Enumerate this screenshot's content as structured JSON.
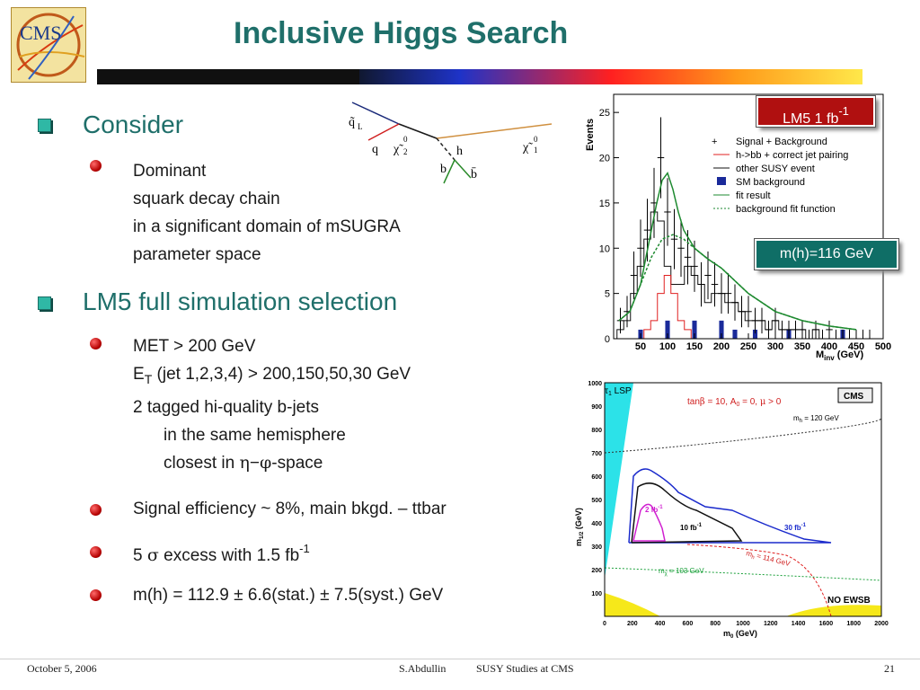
{
  "title": "Inclusive Higgs Search",
  "logo_text": "CMS",
  "section1": {
    "heading": "Consider",
    "items": [
      {
        "lines": [
          "Dominant",
          "squark decay chain",
          "in a significant domain of mSUGRA",
          "parameter space"
        ]
      }
    ]
  },
  "section2": {
    "heading": "LM5 full simulation selection",
    "item1": {
      "line1": "MET > 200 GeV",
      "et_letter": "E",
      "et_sub": "T",
      "line2_rest": " (jet 1,2,3,4) > 200,150,50,30 GeV",
      "line3": "2 tagged hi-quality b-jets",
      "line4": "in the same hemisphere",
      "line5_pre": "closest in ",
      "eta": "η",
      "dash": "−",
      "phi": "φ",
      "line5_post": "-space"
    },
    "item2": "Signal efficiency ~ 8%, main bkgd. – ttbar",
    "item3": {
      "pre": "5 ",
      "sigma": "σ",
      "post": " excess with 1.5 fb",
      "sup": "-1"
    },
    "item4": {
      "pre": "m(h) = 112.9 ",
      "pm1": "±",
      "mid": " 6.6(stat.) ",
      "pm2": "±",
      "post": " 7.5(syst.)  GeV"
    }
  },
  "diagram": {
    "labels": [
      "q̃",
      "L",
      "q",
      "χ̃",
      "0",
      "2",
      "h",
      "b",
      "b̄",
      "χ̃",
      "0",
      "1"
    ]
  },
  "plot1": {
    "box_label": "LM5  1 fb",
    "box_sup": "-1",
    "mass_label": "m(h)=116 GeV",
    "ylabel": "Events",
    "xlabel": "M",
    "xlabel_sub": "inv",
    "xlabel_unit": " (GeV)",
    "legend": [
      "Signal + Background",
      "h->bb + correct jet pairing",
      "other SUSY event",
      "SM background",
      "fit result",
      "background fit function"
    ],
    "colors": {
      "signal": "#000000",
      "correct": "#e02020",
      "other": "#111111",
      "sm": "#1a2a9a",
      "fit": "#1e8a30",
      "bkg": "#1e8a30"
    }
  },
  "chart_data": {
    "type": "bar",
    "title": "",
    "xlabel": "Minv (GeV)",
    "ylabel": "Events",
    "xlim": [
      0,
      500
    ],
    "ylim": [
      0,
      27
    ],
    "xticks": [
      "50",
      "100",
      "150",
      "200",
      "250",
      "300",
      "350",
      "400",
      "450",
      "500"
    ],
    "yticks": [
      "0",
      "5",
      "10",
      "15",
      "20",
      "25"
    ],
    "bin_width": 12.5,
    "bin_centers": [
      12.5,
      25,
      37.5,
      50,
      62.5,
      75,
      87.5,
      100,
      112.5,
      125,
      137.5,
      150,
      162.5,
      175,
      187.5,
      200,
      212.5,
      225,
      237.5,
      250,
      262.5,
      275,
      287.5,
      300,
      312.5,
      325,
      337.5,
      350,
      362.5,
      375,
      387.5,
      400,
      412.5,
      425,
      437.5,
      450,
      462.5,
      475
    ],
    "series": [
      {
        "name": "Signal + Background",
        "values": [
          2,
          3,
          7,
          10,
          12,
          15,
          20,
          14,
          11,
          10,
          9,
          8,
          6,
          7,
          6,
          5,
          5,
          4,
          3,
          3,
          2,
          2,
          1,
          2,
          1,
          1,
          1,
          1,
          0,
          1,
          0,
          1,
          0,
          0,
          0,
          0,
          0,
          0
        ]
      },
      {
        "name": "h->bb + correct jet pairing",
        "values": [
          0,
          0,
          0,
          0,
          1,
          2,
          5,
          7,
          5,
          2,
          1,
          0,
          0,
          0,
          0,
          0,
          0,
          0,
          0,
          0,
          0,
          0,
          0,
          0,
          0,
          0,
          0,
          0,
          0,
          0,
          0,
          0,
          0,
          0,
          0,
          0,
          0,
          0
        ]
      },
      {
        "name": "other SUSY event",
        "values": [
          1,
          2,
          5,
          8,
          11,
          14,
          13,
          8,
          6,
          6,
          8,
          7,
          6,
          4,
          5,
          5,
          4,
          4,
          3,
          2,
          2,
          2,
          1,
          2,
          1,
          1,
          1,
          1,
          0,
          1,
          0,
          0,
          0,
          0,
          0,
          0,
          0,
          0
        ]
      },
      {
        "name": "SM background",
        "values": [
          0,
          0,
          0,
          1,
          0,
          0,
          0,
          2,
          0,
          0,
          0,
          2,
          0,
          0,
          0,
          2,
          0,
          1,
          0,
          0,
          1,
          0,
          0,
          0,
          0,
          1,
          0,
          0,
          0,
          0,
          0,
          0,
          0,
          1,
          0,
          0,
          0,
          0
        ]
      }
    ],
    "fit_result": {
      "x": [
        10,
        30,
        50,
        60,
        70,
        80,
        90,
        100,
        110,
        120,
        130,
        150,
        175,
        200,
        250,
        300,
        350,
        400,
        450
      ],
      "y": [
        2,
        3,
        6,
        9,
        12,
        15,
        17.5,
        18.3,
        16.5,
        14,
        12,
        10,
        8.8,
        7.8,
        5,
        3,
        2,
        1.4,
        1
      ]
    },
    "background_fit": {
      "x": [
        10,
        30,
        50,
        70,
        90,
        110,
        130,
        150,
        175,
        200,
        250,
        300,
        350,
        400,
        450
      ],
      "y": [
        2,
        3,
        6,
        9,
        11,
        11.5,
        11,
        10,
        8.8,
        7.8,
        5,
        3,
        2,
        1.4,
        1
      ]
    }
  },
  "plot2": {
    "ylabel": "m",
    "ylabel_sub": "1/2",
    "ylabel_unit": " (GeV)",
    "xlabel": "m",
    "xlabel_sub": "0",
    "xlabel_unit": " (GeV)",
    "title_pre": "tan",
    "title_beta": "β",
    "title_mid": " = 10, A",
    "title_sub": "0",
    "title_mid2": " = 0, ",
    "title_mu": "μ",
    "title_post": " > 0",
    "badge": "CMS",
    "lsp_tau": "τ",
    "lsp_sub": "1",
    "lsp": " LSP",
    "mh120": "m",
    "mh120_sub": "h",
    "mh120_val": " = 120 GeV",
    "mh114_val": " = 114 GeV",
    "mh103_val": " = 103 GeV",
    "mh103_sub": "χ",
    "noewsb": "NO EWSB",
    "lum2": "2 fb",
    "lum10": "10 fb",
    "lum30": "30 fb",
    "lumsup": "-1",
    "xticks": [
      "0",
      "200",
      "400",
      "600",
      "800",
      "1000",
      "1200",
      "1400",
      "1600",
      "1800",
      "2000"
    ],
    "yticks": [
      "100",
      "200",
      "300",
      "400",
      "500",
      "600",
      "700",
      "800",
      "900",
      "1000"
    ]
  },
  "footer": {
    "date": "October 5, 2006",
    "author": "S.Abdullin",
    "talk": "SUSY Studies at CMS",
    "page": "21"
  }
}
